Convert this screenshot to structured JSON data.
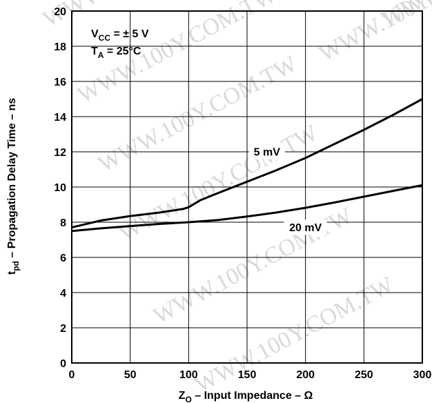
{
  "watermark": "WWW.100Y.COM.TW",
  "chart_data": {
    "type": "line",
    "title": "",
    "conditions": {
      "vcc_main": "V",
      "vcc_sub": "CC",
      "vcc_rest": " = ± 5 V",
      "ta_main": "T",
      "ta_sub": "A",
      "ta_rest": " = 25°C"
    },
    "xlabel": {
      "main": "Z",
      "sub": "O",
      "rest": " – Input Impedance – Ω"
    },
    "ylabel": {
      "main": "t",
      "sub": "pd",
      "rest": " – Propagation Delay Time – ns"
    },
    "xlim": [
      0,
      300
    ],
    "ylim": [
      0,
      20
    ],
    "xticks": [
      0,
      50,
      100,
      150,
      200,
      250,
      300
    ],
    "yticks": [
      0,
      2,
      4,
      6,
      8,
      10,
      12,
      14,
      16,
      18,
      20
    ],
    "grid": true,
    "series": [
      {
        "name": "5 mV",
        "x": [
          0,
          25,
          50,
          75,
          95,
          100,
          110,
          125,
          150,
          175,
          200,
          225,
          250,
          275,
          300
        ],
        "y": [
          7.7,
          8.1,
          8.35,
          8.55,
          8.75,
          8.85,
          9.25,
          9.65,
          10.3,
          10.95,
          11.65,
          12.45,
          13.25,
          14.1,
          15.0
        ]
      },
      {
        "name": "20 mV",
        "x": [
          0,
          25,
          50,
          75,
          100,
          125,
          150,
          175,
          200,
          225,
          250,
          275,
          300
        ],
        "y": [
          7.5,
          7.65,
          7.78,
          7.9,
          8.0,
          8.12,
          8.32,
          8.55,
          8.82,
          9.12,
          9.45,
          9.78,
          10.1
        ]
      }
    ],
    "series_labels": [
      {
        "series": "5 mV",
        "at_x": 167,
        "at_y": 11.9
      },
      {
        "series": "20 mV",
        "at_x": 200,
        "at_y": 7.6
      }
    ]
  }
}
